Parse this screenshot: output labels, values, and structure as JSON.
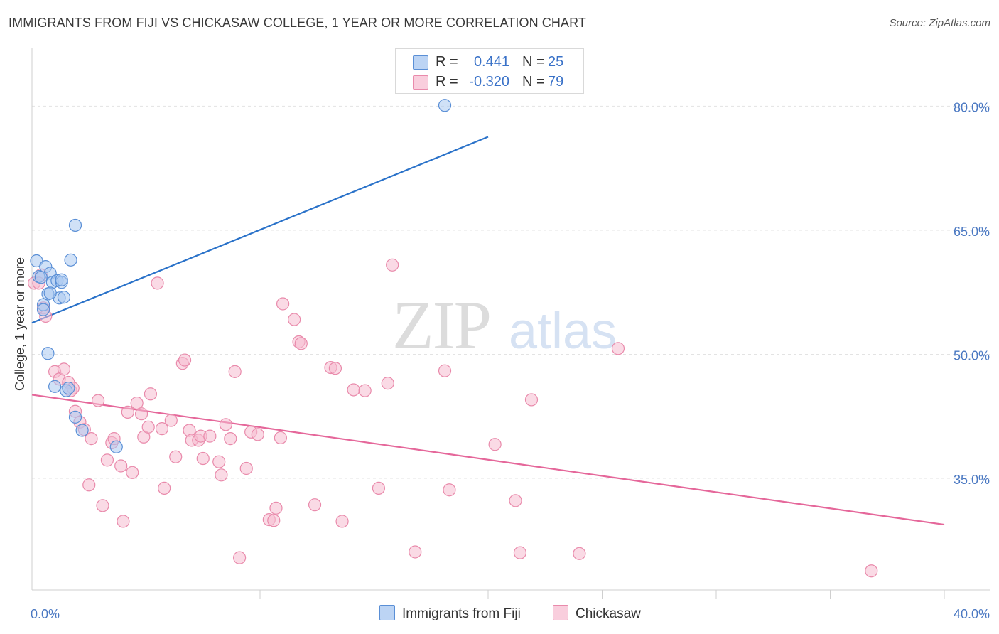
{
  "title": "IMMIGRANTS FROM FIJI VS CHICKASAW COLLEGE, 1 YEAR OR MORE CORRELATION CHART",
  "source": "Source: ZipAtlas.com",
  "watermark": {
    "zip": "ZIP",
    "atlas": "atlas"
  },
  "colors": {
    "fiji_fill": "#aac8f0",
    "fiji_stroke": "#5a8fd6",
    "fiji_line": "#2a72c9",
    "chick_fill": "#f6bcd0",
    "chick_stroke": "#e98aab",
    "chick_line": "#e5679a",
    "tick_text": "#4a78c2",
    "grid": "#e3e3e3"
  },
  "legend": {
    "fiji": {
      "r_label": "R =",
      "r_value": "0.441",
      "n_label": "N =",
      "n_value": "25"
    },
    "chickasaw": {
      "r_label": "R =",
      "r_value": "-0.320",
      "n_label": "N =",
      "n_value": "79"
    }
  },
  "bottom_legend": {
    "fiji": "Immigrants from Fiji",
    "chickasaw": "Chickasaw"
  },
  "chart_data": {
    "type": "scatter",
    "title": "IMMIGRANTS FROM FIJI VS CHICKASAW COLLEGE, 1 YEAR OR MORE CORRELATION CHART",
    "xlabel": "",
    "ylabel": "College, 1 year or more",
    "xlim": [
      0,
      40
    ],
    "ylim": [
      21.5,
      87
    ],
    "x_tick_labels": [
      "0.0%",
      "40.0%"
    ],
    "y_ticks": [
      35,
      50,
      65,
      80
    ],
    "y_tick_labels": [
      "35.0%",
      "50.0%",
      "65.0%",
      "80.0%"
    ],
    "grid": "horizontal dashed",
    "legend_placement": "top-center and bottom",
    "series": [
      {
        "name": "Immigrants from Fiji",
        "r": 0.441,
        "n": 25,
        "trend": {
          "x": [
            0,
            20
          ],
          "y": [
            53.8,
            76.3
          ]
        },
        "points": [
          [
            0.2,
            61.3
          ],
          [
            0.3,
            59.4
          ],
          [
            0.5,
            56.0
          ],
          [
            0.5,
            55.4
          ],
          [
            0.6,
            60.6
          ],
          [
            0.7,
            57.3
          ],
          [
            0.7,
            50.1
          ],
          [
            0.8,
            59.8
          ],
          [
            0.9,
            58.7
          ],
          [
            1.1,
            58.9
          ],
          [
            1.2,
            56.8
          ],
          [
            1.3,
            58.7
          ],
          [
            1.4,
            56.9
          ],
          [
            1.5,
            45.6
          ],
          [
            1.6,
            45.9
          ],
          [
            1.7,
            61.4
          ],
          [
            1.9,
            42.4
          ],
          [
            2.2,
            40.8
          ],
          [
            1.0,
            46.1
          ],
          [
            3.7,
            38.8
          ],
          [
            1.9,
            65.6
          ],
          [
            18.1,
            80.1
          ],
          [
            0.4,
            59.3
          ],
          [
            0.8,
            57.4
          ],
          [
            1.3,
            59.0
          ]
        ]
      },
      {
        "name": "Chickasaw",
        "r": -0.32,
        "n": 79,
        "trend": {
          "x": [
            0,
            40
          ],
          "y": [
            45.1,
            29.4
          ]
        },
        "points": [
          [
            0.1,
            58.6
          ],
          [
            0.4,
            59.6
          ],
          [
            0.5,
            55.6
          ],
          [
            0.6,
            54.6
          ],
          [
            1.0,
            47.9
          ],
          [
            1.2,
            47.0
          ],
          [
            1.4,
            48.2
          ],
          [
            1.6,
            46.6
          ],
          [
            1.7,
            45.6
          ],
          [
            1.9,
            43.1
          ],
          [
            2.1,
            41.8
          ],
          [
            2.3,
            40.9
          ],
          [
            2.5,
            34.2
          ],
          [
            2.6,
            39.8
          ],
          [
            2.9,
            44.4
          ],
          [
            3.1,
            31.7
          ],
          [
            3.3,
            37.2
          ],
          [
            3.5,
            39.3
          ],
          [
            3.6,
            39.8
          ],
          [
            3.9,
            36.5
          ],
          [
            4.0,
            29.8
          ],
          [
            4.2,
            43.0
          ],
          [
            4.4,
            35.7
          ],
          [
            4.6,
            44.1
          ],
          [
            4.8,
            42.8
          ],
          [
            4.9,
            40.0
          ],
          [
            5.1,
            41.2
          ],
          [
            5.2,
            45.2
          ],
          [
            5.5,
            58.6
          ],
          [
            5.7,
            41.0
          ],
          [
            5.8,
            33.8
          ],
          [
            6.1,
            42.0
          ],
          [
            6.3,
            37.6
          ],
          [
            6.6,
            48.9
          ],
          [
            6.7,
            49.3
          ],
          [
            6.9,
            40.8
          ],
          [
            7.0,
            39.6
          ],
          [
            7.3,
            39.6
          ],
          [
            7.4,
            40.1
          ],
          [
            7.5,
            37.4
          ],
          [
            7.8,
            40.1
          ],
          [
            8.2,
            37.0
          ],
          [
            8.3,
            35.4
          ],
          [
            8.5,
            41.5
          ],
          [
            8.7,
            39.8
          ],
          [
            8.9,
            47.9
          ],
          [
            9.1,
            25.4
          ],
          [
            9.4,
            36.2
          ],
          [
            9.6,
            40.6
          ],
          [
            9.9,
            40.3
          ],
          [
            10.4,
            30.0
          ],
          [
            10.6,
            29.9
          ],
          [
            10.9,
            39.9
          ],
          [
            10.7,
            31.4
          ],
          [
            11.0,
            56.1
          ],
          [
            11.5,
            54.2
          ],
          [
            11.7,
            51.5
          ],
          [
            11.8,
            51.3
          ],
          [
            12.4,
            31.8
          ],
          [
            13.1,
            48.4
          ],
          [
            13.3,
            48.3
          ],
          [
            13.6,
            29.8
          ],
          [
            14.1,
            45.7
          ],
          [
            14.6,
            45.6
          ],
          [
            15.2,
            33.8
          ],
          [
            15.6,
            46.5
          ],
          [
            15.8,
            60.8
          ],
          [
            16.8,
            26.1
          ],
          [
            18.1,
            48.0
          ],
          [
            18.3,
            33.6
          ],
          [
            20.3,
            39.1
          ],
          [
            21.2,
            32.3
          ],
          [
            21.4,
            26.0
          ],
          [
            21.9,
            44.5
          ],
          [
            24.0,
            25.9
          ],
          [
            25.7,
            50.7
          ],
          [
            36.8,
            23.8
          ],
          [
            1.8,
            45.9
          ],
          [
            0.3,
            58.6
          ]
        ]
      }
    ]
  }
}
